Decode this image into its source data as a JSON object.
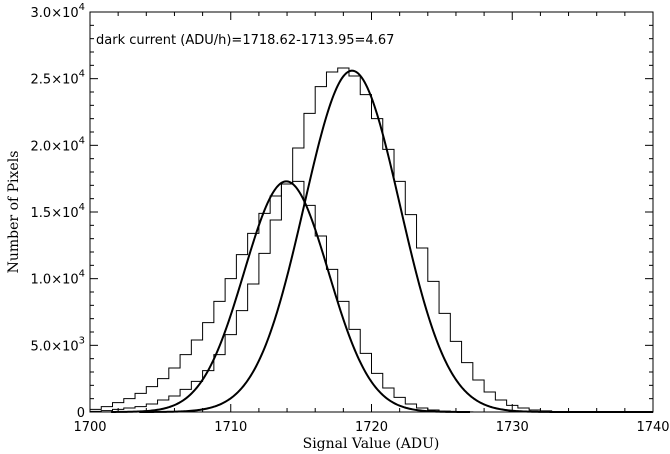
{
  "chart_data": {
    "type": "line",
    "xlabel": "Signal Value (ADU)",
    "ylabel": "Number of Pixels",
    "xlim": [
      1700,
      1740
    ],
    "ylim": [
      0,
      30000
    ],
    "x_ticks": [
      {
        "value": 1700,
        "label": "1700"
      },
      {
        "value": 1710,
        "label": "1710"
      },
      {
        "value": 1720,
        "label": "1720"
      },
      {
        "value": 1730,
        "label": "1730"
      },
      {
        "value": 1740,
        "label": "1740"
      }
    ],
    "y_ticks": [
      {
        "value": 0,
        "mantissa": "0",
        "exp": ""
      },
      {
        "value": 5000,
        "mantissa": "5.0×10",
        "exp": "3"
      },
      {
        "value": 10000,
        "mantissa": "1.0×10",
        "exp": "4"
      },
      {
        "value": 15000,
        "mantissa": "1.5×10",
        "exp": "4"
      },
      {
        "value": 20000,
        "mantissa": "2.0×10",
        "exp": "4"
      },
      {
        "value": 25000,
        "mantissa": "2.5×10",
        "exp": "4"
      },
      {
        "value": 30000,
        "mantissa": "3.0×10",
        "exp": "4"
      }
    ],
    "annotation": "dark current (ADU/h)=1718.62-1713.95=4.67",
    "series": [
      {
        "style": "histogram",
        "bin_width": 0.8,
        "x": [
          1700.0,
          1700.8,
          1701.6,
          1702.4,
          1703.2,
          1704.0,
          1704.8,
          1705.6,
          1706.4,
          1707.2,
          1708.0,
          1708.8,
          1709.6,
          1710.4,
          1711.2,
          1712.0,
          1712.8,
          1713.6,
          1714.4,
          1715.2,
          1716.0,
          1716.8,
          1717.6,
          1718.4,
          1719.2,
          1720.0,
          1720.8,
          1721.6,
          1722.4,
          1723.2,
          1724.0,
          1724.8,
          1725.6,
          1726.4
        ],
        "values": [
          200,
          400,
          700,
          1000,
          1400,
          1900,
          2500,
          3300,
          4300,
          5400,
          6700,
          8300,
          10000,
          11800,
          13400,
          14900,
          16200,
          17100,
          17300,
          15500,
          13200,
          10700,
          8300,
          6200,
          4400,
          2900,
          1800,
          1100,
          600,
          300,
          150,
          70,
          30,
          10
        ]
      },
      {
        "style": "histogram",
        "bin_width": 0.8,
        "x": [
          1700.0,
          1700.8,
          1701.6,
          1702.4,
          1703.2,
          1704.0,
          1704.8,
          1705.6,
          1706.4,
          1707.2,
          1708.0,
          1708.8,
          1709.6,
          1710.4,
          1711.2,
          1712.0,
          1712.8,
          1713.6,
          1714.4,
          1715.2,
          1716.0,
          1716.8,
          1717.6,
          1718.4,
          1719.2,
          1720.0,
          1720.8,
          1721.6,
          1722.4,
          1723.2,
          1724.0,
          1724.8,
          1725.6,
          1726.4,
          1727.2,
          1728.0,
          1728.8,
          1729.6,
          1730.4,
          1731.2,
          1732.0,
          1732.8,
          1733.6
        ],
        "values": [
          50,
          100,
          200,
          300,
          400,
          600,
          900,
          1200,
          1700,
          2300,
          3100,
          4300,
          5800,
          7600,
          9600,
          11900,
          14400,
          17100,
          19800,
          22400,
          24400,
          25500,
          25800,
          25200,
          23800,
          22000,
          19700,
          17300,
          14800,
          12300,
          9800,
          7400,
          5300,
          3700,
          2400,
          1500,
          900,
          500,
          300,
          150,
          80,
          40,
          20
        ]
      },
      {
        "style": "gaussian-fit",
        "center": 1713.95,
        "sigma": 3.0,
        "amplitude": 17300,
        "x_range": [
          1701.5,
          1727
        ]
      },
      {
        "style": "gaussian-fit",
        "center": 1718.62,
        "sigma": 3.4,
        "amplitude": 25600,
        "x_range": [
          1703.5,
          1740
        ]
      }
    ]
  }
}
